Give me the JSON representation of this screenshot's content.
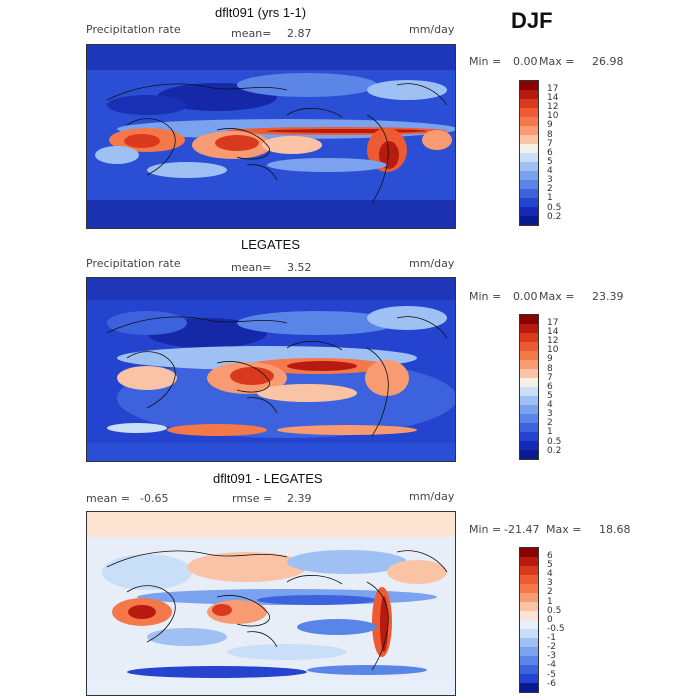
{
  "season": "DJF",
  "panels": [
    {
      "title": "dflt091 (yrs 1-1)",
      "left_label": "Precipitation rate",
      "mean_label": "mean=",
      "mean_value": "2.87",
      "units": "mm/day",
      "min_label": "Min =",
      "min_value": "0.00",
      "max_label": "Max =",
      "max_value": "26.98",
      "cbar_labels": [
        "17",
        "14",
        "12",
        "10",
        "9",
        "8",
        "7",
        "6",
        "5",
        "4",
        "3",
        "2",
        "1",
        "0.5",
        "0.2"
      ]
    },
    {
      "title": "LEGATES",
      "left_label": "Precipitation rate",
      "mean_label": "mean=",
      "mean_value": "3.52",
      "units": "mm/day",
      "min_label": "Min =",
      "min_value": "0.00",
      "max_label": "Max =",
      "max_value": "23.39",
      "cbar_labels": [
        "17",
        "14",
        "12",
        "10",
        "9",
        "8",
        "7",
        "6",
        "5",
        "4",
        "3",
        "2",
        "1",
        "0.5",
        "0.2"
      ]
    },
    {
      "title": "dflt091 - LEGATES",
      "mean_label": "mean =",
      "mean_value": "-0.65",
      "rmse_label": "rmse =",
      "rmse_value": "2.39",
      "units": "mm/day",
      "min_label": "Min =",
      "min_value": "-21.47",
      "max_label": "Max =",
      "max_value": "18.68",
      "cbar_labels": [
        "6",
        "5",
        "4",
        "3",
        "2",
        "1",
        "0.5",
        "0",
        "-0.5",
        "-1",
        "-2",
        "-3",
        "-4",
        "-5",
        "-6"
      ]
    }
  ],
  "colors": {
    "precip_scale": [
      "#8b0000",
      "#b81a0f",
      "#d93a1e",
      "#ee5a32",
      "#f5784a",
      "#f89b72",
      "#fbc3a5",
      "#f6efe6",
      "#c9def7",
      "#9ec0f3",
      "#7aa2ee",
      "#5a85e8",
      "#3c63dd",
      "#2444cf",
      "#1429b5",
      "#0a1a8f"
    ],
    "diff_scale": [
      "#8b0000",
      "#b81a0f",
      "#d93a1e",
      "#ee5a32",
      "#f5784a",
      "#f89b72",
      "#fbc3a5",
      "#fde3d2",
      "#e6effa",
      "#c9def7",
      "#9ec0f3",
      "#7aa2ee",
      "#5a85e8",
      "#3c63dd",
      "#2444cf",
      "#0a1a8f"
    ]
  }
}
